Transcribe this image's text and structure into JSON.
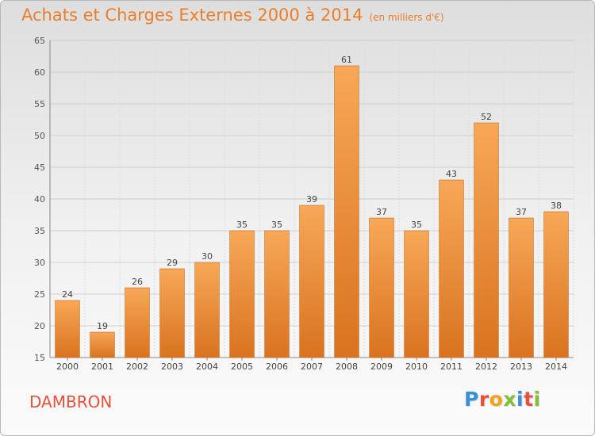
{
  "title": "Achats et Charges Externes 2000 à 2014",
  "subtitle": "(en milliers d'€)",
  "commune": "DAMBRON",
  "logo": {
    "letters": [
      "P",
      "r",
      "o",
      "x",
      "i",
      "t",
      "i"
    ],
    "colors": [
      "#3a8fd6",
      "#e8513b",
      "#f4a21b",
      "#7fbf3a",
      "#3a8fd6",
      "#e8513b",
      "#7fbf3a"
    ]
  },
  "chart_data": {
    "type": "bar",
    "title": "Achats et Charges Externes 2000 à 2014",
    "subtitle": "(en milliers d'€)",
    "categories": [
      "2000",
      "2001",
      "2002",
      "2003",
      "2004",
      "2005",
      "2006",
      "2007",
      "2008",
      "2009",
      "2010",
      "2011",
      "2012",
      "2013",
      "2014"
    ],
    "values": [
      24,
      19,
      26,
      29,
      30,
      35,
      35,
      39,
      61,
      37,
      35,
      43,
      52,
      37,
      38
    ],
    "ylim": [
      15,
      65
    ],
    "yticks": [
      15,
      20,
      25,
      30,
      35,
      40,
      45,
      50,
      55,
      60,
      65
    ],
    "grid": true,
    "bar_color_top": "#f7a858",
    "bar_color_bottom": "#d9731f"
  }
}
